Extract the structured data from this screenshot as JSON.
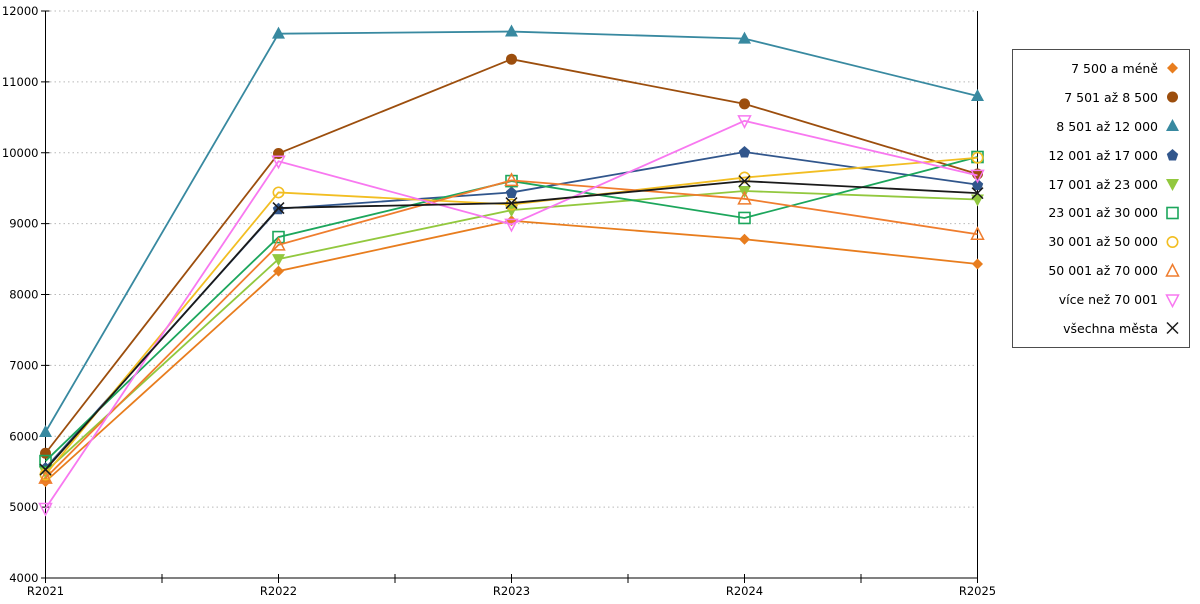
{
  "page": {
    "background": "#FFFFFF",
    "grid_color": "#B9B9B9",
    "axis_color": "#000000"
  },
  "chart_data": {
    "type": "line",
    "title": "",
    "xlabel": "",
    "ylabel": "",
    "categories": [
      "R2021",
      "R2022",
      "R2023",
      "R2024",
      "R2025"
    ],
    "ylim": [
      4000,
      12000
    ],
    "yticks": [
      "4000",
      "5000",
      "6000",
      "7000",
      "8000",
      "9000",
      "10000",
      "11000",
      "12000"
    ],
    "grid": "horizontal-dotted",
    "legend_position": "right",
    "series": [
      {
        "name": "7 500 a méně",
        "color": "#E87D1E",
        "marker": "diamond-filled",
        "values": [
          5360,
          8330,
          9040,
          8780,
          8430
        ]
      },
      {
        "name": "7 501 až 8 500",
        "color": "#9C4E0D",
        "marker": "circle-filled",
        "values": [
          5760,
          9990,
          11320,
          10690,
          9700
        ]
      },
      {
        "name": "8 501 až 12 000",
        "color": "#3889A0",
        "marker": "triangle-up-filled",
        "values": [
          6060,
          11680,
          11710,
          11610,
          10800
        ]
      },
      {
        "name": "12 001 až 17 000",
        "color": "#31568C",
        "marker": "pentagon-filled",
        "values": [
          5550,
          9210,
          9440,
          10010,
          9550
        ]
      },
      {
        "name": "17 001 až 23 000",
        "color": "#92C83E",
        "marker": "triangle-down-filled",
        "values": [
          5500,
          8500,
          9190,
          9460,
          9340
        ]
      },
      {
        "name": "23 001 až 30 000",
        "color": "#1CA65C",
        "marker": "square-open",
        "values": [
          5650,
          8810,
          9600,
          9080,
          9940
        ]
      },
      {
        "name": "30 001 až 50 000",
        "color": "#F2BE22",
        "marker": "circle-open",
        "values": [
          5460,
          9440,
          9270,
          9650,
          9930
        ]
      },
      {
        "name": "50 001 až 70 000",
        "color": "#EF7D2E",
        "marker": "triangle-up-open",
        "values": [
          5410,
          8700,
          9610,
          9350,
          8850
        ]
      },
      {
        "name": "více než 70 001",
        "color": "#F878F0",
        "marker": "triangle-down-open",
        "values": [
          4980,
          9880,
          8990,
          10450,
          9680
        ]
      },
      {
        "name": "všechna města",
        "color": "#1A1A1A",
        "marker": "x",
        "values": [
          5530,
          9220,
          9290,
          9600,
          9430
        ]
      }
    ]
  }
}
